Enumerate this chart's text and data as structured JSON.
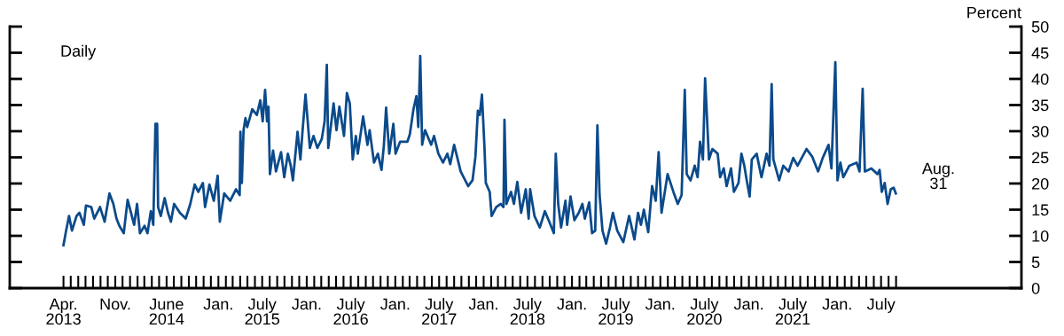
{
  "chart_data": {
    "type": "line",
    "ylabel": "Percent",
    "annotations": [
      "Daily",
      "Aug.\n31"
    ],
    "series": [
      {
        "color": "#0b4a8b",
        "x": [
          "2013-04-01",
          "2013-04-12",
          "2013-04-24",
          "2013-05-06",
          "2013-05-25",
          "2013-06-06",
          "2013-06-24",
          "2013-07-03",
          "2013-07-25",
          "2013-08-06",
          "2013-08-30",
          "2013-09-18",
          "2013-10-08",
          "2013-10-24",
          "2013-11-06",
          "2013-11-18",
          "2013-12-06",
          "2013-12-22",
          "2014-01-18",
          "2014-01-30",
          "2014-02-11",
          "2014-03-02",
          "2014-03-14",
          "2014-03-28",
          "2014-04-07",
          "2014-04-16",
          "2014-04-23",
          "2014-04-27",
          "2014-05-08",
          "2014-05-24",
          "2014-06-07",
          "2014-06-19",
          "2014-07-02",
          "2014-07-26",
          "2014-08-19",
          "2014-09-07",
          "2014-09-25",
          "2014-10-10",
          "2014-10-29",
          "2014-11-07",
          "2014-11-25",
          "2014-12-13",
          "2014-12-29",
          "2015-01-07",
          "2015-01-25",
          "2015-02-19",
          "2015-03-15",
          "2015-03-30",
          "2015-04-02",
          "2015-04-08",
          "2015-04-15",
          "2015-04-23",
          "2015-04-30",
          "2015-05-21",
          "2015-06-09",
          "2015-06-23",
          "2015-07-03",
          "2015-07-13",
          "2015-07-21",
          "2015-07-27",
          "2015-08-02",
          "2015-08-15",
          "2015-08-27",
          "2015-09-17",
          "2015-09-30",
          "2015-10-15",
          "2015-10-27",
          "2015-11-05",
          "2015-11-24",
          "2015-12-06",
          "2015-12-15",
          "2015-12-27",
          "2016-01-14",
          "2016-01-29",
          "2016-02-14",
          "2016-03-03",
          "2016-03-15",
          "2016-03-24",
          "2016-03-30",
          "2016-04-21",
          "2016-05-03",
          "2016-05-15",
          "2016-06-03",
          "2016-06-15",
          "2016-06-27",
          "2016-07-09",
          "2016-07-22",
          "2016-07-30",
          "2016-08-21",
          "2016-09-08",
          "2016-09-17",
          "2016-10-05",
          "2016-10-21",
          "2016-11-05",
          "2016-11-15",
          "2016-11-24",
          "2016-12-07",
          "2016-12-24",
          "2017-01-02",
          "2017-01-21",
          "2017-02-20",
          "2017-03-02",
          "2017-03-17",
          "2017-03-29",
          "2017-04-06",
          "2017-04-14",
          "2017-04-22",
          "2017-05-04",
          "2017-05-29",
          "2017-06-10",
          "2017-06-28",
          "2017-07-17",
          "2017-08-04",
          "2017-08-16",
          "2017-09-01",
          "2017-09-16",
          "2017-09-28",
          "2017-10-29",
          "2017-11-16",
          "2017-11-28",
          "2017-12-08",
          "2017-12-16",
          "2017-12-25",
          "2018-01-04",
          "2018-01-10",
          "2018-01-26",
          "2018-02-03",
          "2018-02-22",
          "2018-03-12",
          "2018-03-24",
          "2018-03-28",
          "2018-04-05",
          "2018-04-24",
          "2018-05-06",
          "2018-05-20",
          "2018-06-05",
          "2018-06-24",
          "2018-07-06",
          "2018-07-12",
          "2018-07-30",
          "2018-08-21",
          "2018-09-11",
          "2018-09-29",
          "2018-10-18",
          "2018-10-26",
          "2018-11-05",
          "2018-11-17",
          "2018-12-05",
          "2018-12-12",
          "2018-12-26",
          "2019-01-11",
          "2019-01-29",
          "2019-02-13",
          "2019-02-23",
          "2019-03-13",
          "2019-03-25",
          "2019-04-07",
          "2019-04-16",
          "2019-04-25",
          "2019-05-07",
          "2019-05-22",
          "2019-06-07",
          "2019-06-19",
          "2019-07-07",
          "2019-08-01",
          "2019-08-25",
          "2019-09-16",
          "2019-10-01",
          "2019-10-13",
          "2019-10-25",
          "2019-11-12",
          "2019-11-28",
          "2019-12-13",
          "2019-12-25",
          "2020-01-06",
          "2020-01-31",
          "2020-02-24",
          "2020-03-13",
          "2020-03-29",
          "2020-04-11",
          "2020-04-19",
          "2020-05-05",
          "2020-05-22",
          "2020-06-03",
          "2020-06-13",
          "2020-06-25",
          "2020-07-04",
          "2020-07-20",
          "2020-08-03",
          "2020-08-25",
          "2020-09-04",
          "2020-09-19",
          "2020-10-01",
          "2020-10-19",
          "2020-10-31",
          "2020-11-19",
          "2020-12-01",
          "2020-12-13",
          "2020-12-23",
          "2021-01-04",
          "2021-01-13",
          "2021-02-02",
          "2021-02-22",
          "2021-03-15",
          "2021-03-27",
          "2021-04-05",
          "2021-04-12",
          "2021-05-06",
          "2021-05-23",
          "2021-06-14",
          "2021-07-03",
          "2021-07-21",
          "2021-08-27",
          "2021-09-20",
          "2021-10-14",
          "2021-11-02",
          "2021-11-26",
          "2021-12-08",
          "2021-12-24",
          "2022-01-02",
          "2022-01-14",
          "2022-01-26",
          "2022-02-20",
          "2022-03-22",
          "2022-04-03",
          "2022-04-16",
          "2022-04-25",
          "2022-05-22",
          "2022-06-16",
          "2022-06-25",
          "2022-07-04",
          "2022-07-16",
          "2022-07-28",
          "2022-08-10",
          "2022-08-22",
          "2022-08-31"
        ],
        "values": [
          8.2,
          11.0,
          13.8,
          11.0,
          13.8,
          14.4,
          12.1,
          15.8,
          15.5,
          13.3,
          15.5,
          12.7,
          18.1,
          16.1,
          13.3,
          11.9,
          10.5,
          16.9,
          12.1,
          16.1,
          10.5,
          11.9,
          10.5,
          14.7,
          12.1,
          31.4,
          31.4,
          15.5,
          13.8,
          17.2,
          14.4,
          12.7,
          16.1,
          14.4,
          13.3,
          16.1,
          19.8,
          18.4,
          20.1,
          15.5,
          19.8,
          16.7,
          21.5,
          12.7,
          18.1,
          16.7,
          18.9,
          17.8,
          29.9,
          20.1,
          30.2,
          32.5,
          30.8,
          34.2,
          33.1,
          35.9,
          31.9,
          37.9,
          31.9,
          34.7,
          21.8,
          26.3,
          22.3,
          26.0,
          21.2,
          25.7,
          23.4,
          20.6,
          29.9,
          24.6,
          30.2,
          37.0,
          26.8,
          29.1,
          26.8,
          28.5,
          31.9,
          42.7,
          26.8,
          35.3,
          30.2,
          34.7,
          29.1,
          37.3,
          35.3,
          24.6,
          29.1,
          25.7,
          32.8,
          27.4,
          30.2,
          24.0,
          25.7,
          22.6,
          27.4,
          34.5,
          25.7,
          31.4,
          25.7,
          28.0,
          28.0,
          29.4,
          34.2,
          36.7,
          30.8,
          44.4,
          27.4,
          30.2,
          27.4,
          29.1,
          25.7,
          24.0,
          25.7,
          23.7,
          27.4,
          24.6,
          22.3,
          19.5,
          20.6,
          25.1,
          33.9,
          33.1,
          37.0,
          27.4,
          20.1,
          18.4,
          13.8,
          15.5,
          16.1,
          15.5,
          32.2,
          16.1,
          18.4,
          16.1,
          20.3,
          14.4,
          18.9,
          13.3,
          18.9,
          13.8,
          11.6,
          14.7,
          12.7,
          10.5,
          25.7,
          16.1,
          11.6,
          16.7,
          12.1,
          17.5,
          13.0,
          14.4,
          16.1,
          13.3,
          16.4,
          10.5,
          11.0,
          31.1,
          17.8,
          11.0,
          8.5,
          11.6,
          14.4,
          11.0,
          8.8,
          13.8,
          9.3,
          14.4,
          12.1,
          15.0,
          10.7,
          19.5,
          16.7,
          26.0,
          14.4,
          21.8,
          18.4,
          16.1,
          17.8,
          37.9,
          21.8,
          20.6,
          23.4,
          21.2,
          28.0,
          24.6,
          40.1,
          24.6,
          26.6,
          25.7,
          21.2,
          22.9,
          19.5,
          22.9,
          18.4,
          20.1,
          25.7,
          23.4,
          20.6,
          17.5,
          24.6,
          25.7,
          21.2,
          25.7,
          23.4,
          39.0,
          24.6,
          20.6,
          23.4,
          22.3,
          24.9,
          23.4,
          26.6,
          25.1,
          22.3,
          24.9,
          27.4,
          22.9,
          43.2,
          20.6,
          24.0,
          21.2,
          23.4,
          24.0,
          22.3,
          38.1,
          22.3,
          22.9,
          21.8,
          22.6,
          18.4,
          20.1,
          16.1,
          18.9,
          19.2,
          18.1
        ]
      }
    ],
    "xlim": [
      "2012-08-22",
      "2024-02-01"
    ],
    "ylim": [
      0,
      50
    ],
    "yticks": [
      0,
      5,
      10,
      15,
      20,
      25,
      30,
      35,
      40,
      45,
      50
    ],
    "xticks": [
      {
        "value": "2013-04",
        "label": "Apr.\n2013"
      },
      {
        "value": "2013-05",
        "label": null
      },
      {
        "value": "2013-06",
        "label": null
      },
      {
        "value": "2013-07",
        "label": null
      },
      {
        "value": "2013-08",
        "label": null
      },
      {
        "value": "2013-09",
        "label": null
      },
      {
        "value": "2013-10",
        "label": null
      },
      {
        "value": "2013-11",
        "label": "Nov."
      },
      {
        "value": "2013-12",
        "label": null
      },
      {
        "value": "2014-01",
        "label": null
      },
      {
        "value": "2014-02",
        "label": null
      },
      {
        "value": "2014-03",
        "label": null
      },
      {
        "value": "2014-04",
        "label": null
      },
      {
        "value": "2014-05",
        "label": null
      },
      {
        "value": "2014-06",
        "label": "June\n2014"
      },
      {
        "value": "2014-07",
        "label": null
      },
      {
        "value": "2014-08",
        "label": null
      },
      {
        "value": "2014-09",
        "label": null
      },
      {
        "value": "2014-10",
        "label": null
      },
      {
        "value": "2014-11",
        "label": null
      },
      {
        "value": "2014-12",
        "label": null
      },
      {
        "value": "2015-01",
        "label": "Jan."
      },
      {
        "value": "2015-02",
        "label": null
      },
      {
        "value": "2015-03",
        "label": null
      },
      {
        "value": "2015-04",
        "label": null
      },
      {
        "value": "2015-05",
        "label": null
      },
      {
        "value": "2015-06",
        "label": null
      },
      {
        "value": "2015-07",
        "label": "July\n2015"
      },
      {
        "value": "2015-08",
        "label": null
      },
      {
        "value": "2015-09",
        "label": null
      },
      {
        "value": "2015-10",
        "label": null
      },
      {
        "value": "2015-11",
        "label": null
      },
      {
        "value": "2015-12",
        "label": null
      },
      {
        "value": "2016-01",
        "label": "Jan."
      },
      {
        "value": "2016-02",
        "label": null
      },
      {
        "value": "2016-03",
        "label": null
      },
      {
        "value": "2016-04",
        "label": null
      },
      {
        "value": "2016-05",
        "label": null
      },
      {
        "value": "2016-06",
        "label": null
      },
      {
        "value": "2016-07",
        "label": "July\n2016"
      },
      {
        "value": "2016-08",
        "label": null
      },
      {
        "value": "2016-09",
        "label": null
      },
      {
        "value": "2016-10",
        "label": null
      },
      {
        "value": "2016-11",
        "label": null
      },
      {
        "value": "2016-12",
        "label": null
      },
      {
        "value": "2017-01",
        "label": "Jan."
      },
      {
        "value": "2017-02",
        "label": null
      },
      {
        "value": "2017-03",
        "label": null
      },
      {
        "value": "2017-04",
        "label": null
      },
      {
        "value": "2017-05",
        "label": null
      },
      {
        "value": "2017-06",
        "label": null
      },
      {
        "value": "2017-07",
        "label": "July\n2017"
      },
      {
        "value": "2017-08",
        "label": null
      },
      {
        "value": "2017-09",
        "label": null
      },
      {
        "value": "2017-10",
        "label": null
      },
      {
        "value": "2017-11",
        "label": null
      },
      {
        "value": "2017-12",
        "label": null
      },
      {
        "value": "2018-01",
        "label": "Jan."
      },
      {
        "value": "2018-02",
        "label": null
      },
      {
        "value": "2018-03",
        "label": null
      },
      {
        "value": "2018-04",
        "label": null
      },
      {
        "value": "2018-05",
        "label": null
      },
      {
        "value": "2018-06",
        "label": null
      },
      {
        "value": "2018-07",
        "label": "July\n2018"
      },
      {
        "value": "2018-08",
        "label": null
      },
      {
        "value": "2018-09",
        "label": null
      },
      {
        "value": "2018-10",
        "label": null
      },
      {
        "value": "2018-11",
        "label": null
      },
      {
        "value": "2018-12",
        "label": null
      },
      {
        "value": "2019-01",
        "label": "Jan."
      },
      {
        "value": "2019-02",
        "label": null
      },
      {
        "value": "2019-03",
        "label": null
      },
      {
        "value": "2019-04",
        "label": null
      },
      {
        "value": "2019-05",
        "label": null
      },
      {
        "value": "2019-06",
        "label": null
      },
      {
        "value": "2019-07",
        "label": "July\n2019"
      },
      {
        "value": "2019-08",
        "label": null
      },
      {
        "value": "2019-09",
        "label": null
      },
      {
        "value": "2019-10",
        "label": null
      },
      {
        "value": "2019-11",
        "label": null
      },
      {
        "value": "2019-12",
        "label": null
      },
      {
        "value": "2020-01",
        "label": "Jan."
      },
      {
        "value": "2020-02",
        "label": null
      },
      {
        "value": "2020-03",
        "label": null
      },
      {
        "value": "2020-04",
        "label": null
      },
      {
        "value": "2020-05",
        "label": null
      },
      {
        "value": "2020-06",
        "label": null
      },
      {
        "value": "2020-07",
        "label": "July\n2020"
      },
      {
        "value": "2020-08",
        "label": null
      },
      {
        "value": "2020-09",
        "label": null
      },
      {
        "value": "2020-10",
        "label": null
      },
      {
        "value": "2020-11",
        "label": null
      },
      {
        "value": "2020-12",
        "label": null
      },
      {
        "value": "2021-01",
        "label": "Jan."
      },
      {
        "value": "2021-02",
        "label": null
      },
      {
        "value": "2021-03",
        "label": null
      },
      {
        "value": "2021-04",
        "label": null
      },
      {
        "value": "2021-05",
        "label": null
      },
      {
        "value": "2021-06",
        "label": null
      },
      {
        "value": "2021-07",
        "label": "July\n2021"
      },
      {
        "value": "2021-08",
        "label": null
      },
      {
        "value": "2021-09",
        "label": null
      },
      {
        "value": "2021-10",
        "label": null
      },
      {
        "value": "2021-11",
        "label": null
      },
      {
        "value": "2021-12",
        "label": null
      },
      {
        "value": "2022-01",
        "label": "Jan."
      },
      {
        "value": "2022-02",
        "label": null
      },
      {
        "value": "2022-03",
        "label": null
      },
      {
        "value": "2022-04",
        "label": null
      },
      {
        "value": "2022-05",
        "label": null
      },
      {
        "value": "2022-06",
        "label": null
      },
      {
        "value": "2022-07",
        "label": "July"
      },
      {
        "value": "2022-08",
        "label": null
      },
      {
        "value": "2022-09",
        "label": null
      }
    ],
    "marker": "none",
    "line_style": "solid"
  }
}
